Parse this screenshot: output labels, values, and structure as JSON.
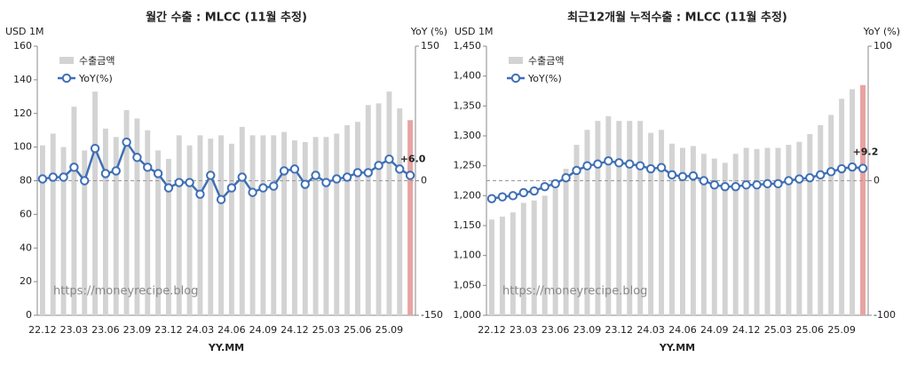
{
  "chart_data": [
    {
      "type": "bar-line",
      "title": "월간 수출 : MLCC (11월 추정)",
      "y_label": "USD 1M",
      "y2_label": "YoY (%)",
      "x_label": "YY.MM",
      "watermark": "https://moneyrecipe.blog",
      "categories": [
        "22.12",
        null,
        null,
        "23.03",
        null,
        null,
        "23.06",
        null,
        null,
        "23.09",
        null,
        null,
        "23.12",
        null,
        null,
        "24.03",
        null,
        null,
        "24.06",
        null,
        null,
        "24.09",
        null,
        null,
        "24.12",
        null,
        null,
        "25.03",
        null,
        null,
        "25.06",
        null,
        null,
        "25.09",
        null,
        null
      ],
      "series": [
        {
          "name": "수출금액",
          "type": "bar",
          "color": "#d3d3d3",
          "highlight_color": "#e8a3a3",
          "values": [
            101,
            108,
            100,
            124,
            98,
            133,
            111,
            106,
            122,
            117,
            110,
            98,
            93,
            107,
            101,
            107,
            105,
            107,
            102,
            112,
            107,
            107,
            107,
            109,
            104,
            103,
            106,
            106,
            108,
            113,
            115,
            125,
            126,
            133,
            123,
            116
          ]
        },
        {
          "name": "YoY(%)",
          "type": "line",
          "axis": "y2",
          "color": "#3f6fb5",
          "label_color": "#d9534f",
          "values": [
            2,
            4,
            4,
            15,
            0,
            36,
            8,
            11,
            43,
            26,
            15,
            8,
            -8,
            -2,
            -2,
            -15,
            6,
            -21,
            -8,
            4,
            -13,
            -8,
            -6,
            11,
            13,
            -4,
            6,
            -2,
            2,
            4,
            9,
            9,
            17,
            24,
            13,
            6
          ],
          "value_labels": [
            null,
            null,
            null,
            null,
            null,
            null,
            null,
            null,
            null,
            null,
            null,
            null,
            null,
            null,
            null,
            null,
            null,
            null,
            null,
            null,
            null,
            null,
            null,
            null,
            null,
            null,
            null,
            null,
            null,
            null,
            null,
            null,
            null,
            null,
            null,
            "+6.0"
          ]
        }
      ],
      "ylim": [
        0,
        160
      ],
      "yticks": [
        0,
        20,
        40,
        60,
        80,
        100,
        120,
        140,
        160
      ],
      "y2lim": [
        -150,
        150
      ],
      "y2ticks": [
        -150,
        0,
        150
      ],
      "legend": "upper left"
    },
    {
      "type": "bar-line",
      "title": "최근12개월 누적수출 : MLCC (11월 추정)",
      "y_label": "USD 1M",
      "y2_label": "YoY (%)",
      "x_label": "YY.MM",
      "watermark": "https://moneyrecipe.blog",
      "categories": [
        "22.12",
        null,
        null,
        "23.03",
        null,
        null,
        "23.06",
        null,
        null,
        "23.09",
        null,
        null,
        "23.12",
        null,
        null,
        "24.03",
        null,
        null,
        "24.06",
        null,
        null,
        "24.09",
        null,
        null,
        "24.12",
        null,
        null,
        "25.03",
        null,
        null,
        "25.06",
        null,
        null,
        "25.09",
        null,
        null
      ],
      "series": [
        {
          "name": "수출금액",
          "type": "bar",
          "color": "#d3d3d3",
          "highlight_color": "#e8a3a3",
          "values": [
            1160,
            1165,
            1172,
            1188,
            1192,
            1200,
            1215,
            1245,
            1285,
            1310,
            1325,
            1333,
            1325,
            1325,
            1325,
            1305,
            1310,
            1287,
            1280,
            1283,
            1270,
            1262,
            1255,
            1270,
            1280,
            1278,
            1280,
            1280,
            1285,
            1290,
            1303,
            1318,
            1335,
            1362,
            1378,
            1385
          ]
        },
        {
          "name": "YoY(%)",
          "type": "line",
          "axis": "y2",
          "color": "#3f6fb5",
          "label_color": "#d9534f",
          "values": [
            -13.3,
            -12,
            -11.1,
            -8.9,
            -7.6,
            -4.4,
            -2.2,
            2.2,
            7.6,
            11.1,
            12.4,
            14.7,
            13.3,
            12.4,
            11.1,
            8.9,
            9.8,
            4.4,
            3.1,
            3.6,
            0,
            -3.1,
            -4.4,
            -4.4,
            -3.1,
            -3.1,
            -2.2,
            -2.2,
            0,
            1.3,
            2.2,
            4.4,
            6.7,
            8.9,
            10.2,
            9.2
          ],
          "value_labels": [
            null,
            null,
            null,
            null,
            null,
            null,
            null,
            null,
            null,
            null,
            null,
            null,
            null,
            null,
            null,
            null,
            null,
            null,
            null,
            null,
            null,
            null,
            null,
            null,
            null,
            null,
            null,
            null,
            null,
            null,
            null,
            null,
            null,
            null,
            null,
            "+9.2"
          ]
        }
      ],
      "ylim": [
        1000,
        1450
      ],
      "yticks": [
        {
          "value": 1000,
          "label": "1,000"
        },
        {
          "value": 1050,
          "label": "1,050"
        },
        {
          "value": 1100,
          "label": "1,100"
        },
        {
          "value": 1150,
          "label": "1,150"
        },
        {
          "value": 1200,
          "label": "1,200"
        },
        {
          "value": 1250,
          "label": "1,250"
        },
        {
          "value": 1300,
          "label": "1,300"
        },
        {
          "value": 1350,
          "label": "1,350"
        },
        {
          "value": 1400,
          "label": "1,400"
        },
        {
          "value": 1450,
          "label": "1,450"
        }
      ],
      "y2lim": [
        -100,
        100
      ],
      "y2ticks": [
        -100,
        0,
        100
      ],
      "legend": "upper left"
    }
  ]
}
